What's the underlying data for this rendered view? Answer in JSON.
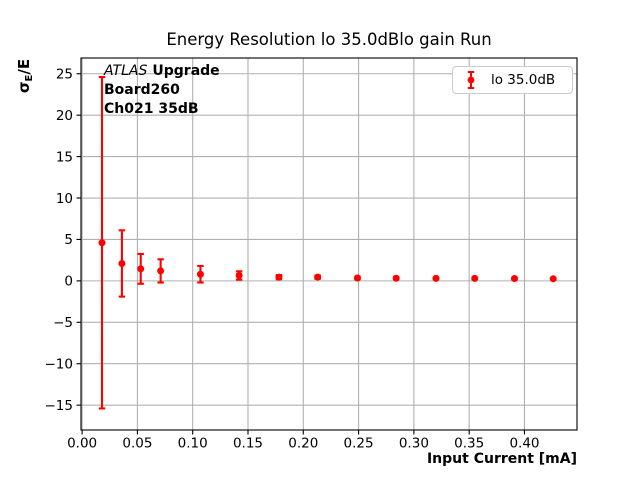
{
  "figure": {
    "background": "#ffffff"
  },
  "chart_data": {
    "type": "scatter",
    "title": "Energy Resolution lo 35.0dBlo gain Run",
    "xlabel": "Input Current [mA]",
    "ylabel": "σ_E/E",
    "ylabel_parts": {
      "sigma": "σ",
      "sub": "E",
      "rest": "/E"
    },
    "annotation": {
      "line1_italic": "ATLAS",
      "line1_bold": "Upgrade",
      "line2": "Board260",
      "line3": "Ch021 35dB"
    },
    "legend": [
      "lo 35.0dB"
    ],
    "legend_position": "upper right",
    "grid": true,
    "xlim": [
      -0.001,
      0.4475
    ],
    "ylim": [
      -18.0,
      26.9
    ],
    "xticks": [
      0.0,
      0.05,
      0.1,
      0.15,
      0.2,
      0.25,
      0.3,
      0.35,
      0.4
    ],
    "xtick_labels": [
      "0.00",
      "0.05",
      "0.10",
      "0.15",
      "0.20",
      "0.25",
      "0.30",
      "0.35",
      "0.40"
    ],
    "yticks": [
      -15,
      -10,
      -5,
      0,
      5,
      10,
      15,
      20,
      25
    ],
    "ytick_labels": [
      "−15",
      "−10",
      "−5",
      "0",
      "5",
      "10",
      "15",
      "20",
      "25"
    ],
    "series": [
      {
        "name": "lo 35.0dB",
        "marker": "circle",
        "color": "#ff0000",
        "x": [
          0.018,
          0.036,
          0.053,
          0.071,
          0.107,
          0.142,
          0.178,
          0.213,
          0.249,
          0.284,
          0.32,
          0.355,
          0.391,
          0.426
        ],
        "y": [
          4.6,
          2.1,
          1.45,
          1.2,
          0.8,
          0.65,
          0.45,
          0.45,
          0.35,
          0.32,
          0.3,
          0.3,
          0.28,
          0.25
        ],
        "yerr": [
          20.0,
          4.0,
          1.8,
          1.4,
          1.0,
          0.5,
          0.25,
          0.2,
          0.15,
          0.12,
          0.1,
          0.1,
          0.1,
          0.1
        ]
      }
    ],
    "colors": {
      "series": "#ff0000",
      "grid": "#b0b0b0",
      "spine": "#000000",
      "text": "#000000",
      "legend_border": "#cccccc"
    }
  }
}
